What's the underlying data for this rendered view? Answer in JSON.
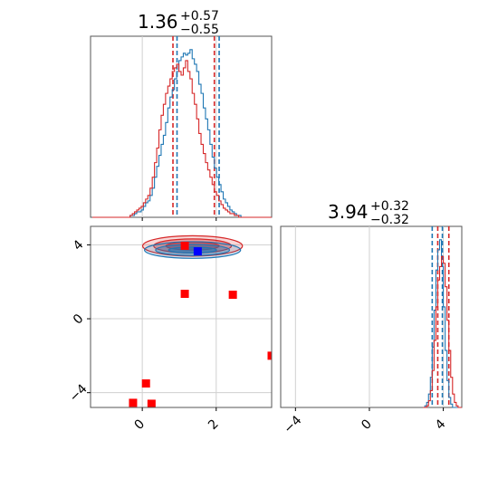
{
  "chart_data": [
    {
      "panel": "marginal-1",
      "type": "histogram",
      "title": {
        "value": "1.36",
        "plus": "+0.57",
        "minus": "−0.55"
      },
      "xlim": [
        -1.4,
        3.5
      ],
      "x_ticks": [
        0,
        2
      ],
      "series": [
        {
          "color": "#1f77b4",
          "quantiles": [
            0.94,
            2.08
          ],
          "bin_start": -1.35,
          "bin_width": 0.06,
          "heights": [
            0,
            0,
            0,
            0,
            0,
            0,
            0,
            0,
            0,
            0,
            0,
            0,
            0,
            0,
            0,
            0,
            0,
            1,
            1,
            2,
            3,
            3,
            4,
            6,
            8,
            9,
            12,
            16,
            22,
            28,
            34,
            40,
            45,
            52,
            60,
            66,
            70,
            76,
            80,
            86,
            88,
            90,
            89,
            90,
            92,
            87,
            84,
            80,
            73,
            68,
            60,
            54,
            48,
            40,
            33,
            27,
            22,
            18,
            14,
            10,
            8,
            6,
            4,
            3,
            2,
            1,
            1,
            0,
            0,
            0,
            0,
            0,
            0,
            0,
            0,
            0,
            0,
            0,
            0,
            0,
            0,
            0
          ]
        },
        {
          "color": "#d62728",
          "quantiles": [
            0.83,
            1.95
          ],
          "bin_start": -1.35,
          "bin_width": 0.06,
          "heights": [
            0,
            0,
            0,
            0,
            0,
            0,
            0,
            0,
            0,
            0,
            0,
            0,
            0,
            0,
            0,
            0,
            0,
            1,
            2,
            3,
            4,
            5,
            6,
            8,
            10,
            12,
            16,
            22,
            30,
            38,
            48,
            56,
            62,
            68,
            72,
            76,
            80,
            82,
            84,
            80,
            78,
            82,
            86,
            80,
            76,
            68,
            62,
            54,
            46,
            40,
            35,
            30,
            26,
            22,
            18,
            14,
            12,
            9,
            7,
            5,
            4,
            3,
            2,
            2,
            1,
            1,
            0,
            0,
            0,
            0,
            0,
            0,
            0,
            0,
            0,
            0,
            0,
            0,
            0,
            0,
            0,
            0
          ]
        }
      ]
    },
    {
      "panel": "joint",
      "type": "scatter",
      "xlim": [
        -1.4,
        3.5
      ],
      "ylim": [
        -4.8,
        5.0
      ],
      "x_ticks": [
        0,
        2
      ],
      "y_ticks": [
        -4,
        0,
        4
      ],
      "series": [
        {
          "color": "#ff0000",
          "marker": "square",
          "points": [
            [
              1.15,
              1.35
            ],
            [
              2.45,
              1.3
            ],
            [
              0.1,
              -3.5
            ],
            [
              -0.25,
              -4.55
            ],
            [
              0.25,
              -4.6
            ],
            [
              3.5,
              -2.0
            ],
            [
              1.15,
              3.95
            ]
          ]
        },
        {
          "color": "#0000ff",
          "marker": "square",
          "points": [
            [
              1.5,
              3.65
            ]
          ]
        }
      ],
      "contours": [
        {
          "color": "#d62728",
          "center": [
            1.36,
            3.94
          ],
          "rx": [
            0.72,
            1.05,
            1.35
          ],
          "ry": [
            0.22,
            0.38,
            0.55
          ]
        },
        {
          "color": "#1f77b4",
          "center": [
            1.36,
            3.72
          ],
          "rx": [
            0.65,
            1.0,
            1.3
          ],
          "ry": [
            0.16,
            0.3,
            0.45
          ]
        }
      ]
    },
    {
      "panel": "marginal-2",
      "type": "histogram",
      "title": {
        "value": "3.94",
        "plus": "+0.32",
        "minus": "−0.32"
      },
      "xlim": [
        -4.8,
        5.0
      ],
      "x_ticks": [
        -4,
        0,
        4
      ],
      "series": [
        {
          "color": "#1f77b4",
          "quantiles": [
            3.4,
            3.95
          ],
          "bin_start": 2.9,
          "bin_width": 0.1,
          "heights": [
            0,
            1,
            3,
            8,
            18,
            36,
            58,
            82,
            94,
            100,
            84,
            60,
            34,
            16,
            6,
            2,
            0,
            0,
            0,
            0,
            0
          ]
        },
        {
          "color": "#d62728",
          "quantiles": [
            3.7,
            4.3
          ],
          "bin_start": 2.9,
          "bin_width": 0.1,
          "heights": [
            0,
            0,
            1,
            4,
            10,
            22,
            40,
            60,
            76,
            84,
            90,
            86,
            72,
            52,
            34,
            18,
            8,
            3,
            1,
            0,
            0
          ]
        }
      ]
    }
  ]
}
